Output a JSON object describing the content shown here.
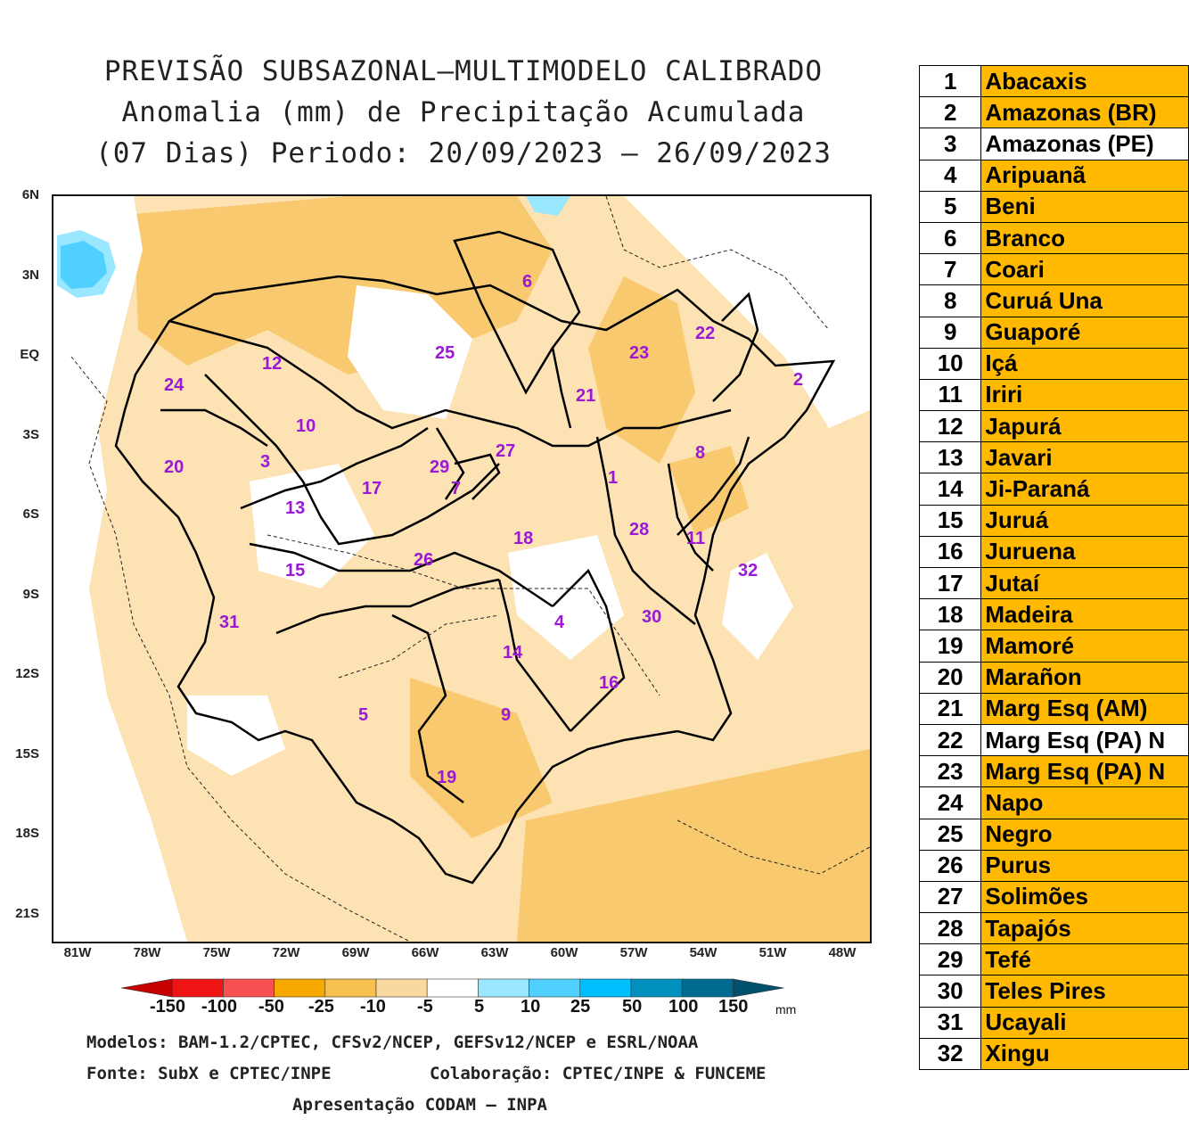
{
  "title": {
    "line1": "PREVISÃO SUBSAZONAL—MULTIMODELO CALIBRADO",
    "line2": "Anomalia (mm) de Precipitação Acumulada",
    "line3": "(07 Dias) Periodo: 20/09/2023 — 26/09/2023"
  },
  "map": {
    "lat_labels": [
      "6N",
      "3N",
      "EQ",
      "3S",
      "6S",
      "9S",
      "12S",
      "15S",
      "18S",
      "21S"
    ],
    "lon_labels": [
      "81W",
      "78W",
      "75W",
      "72W",
      "69W",
      "66W",
      "63W",
      "60W",
      "57W",
      "54W",
      "51W",
      "48W"
    ],
    "basin_labels": [
      "1",
      "2",
      "3",
      "4",
      "5",
      "6",
      "7",
      "8",
      "9",
      "10",
      "11",
      "12",
      "13",
      "14",
      "15",
      "16",
      "17",
      "18",
      "19",
      "20",
      "21",
      "22",
      "23",
      "24",
      "25",
      "26",
      "27",
      "28",
      "29",
      "30",
      "31",
      "32"
    ]
  },
  "colorbar": {
    "labels": [
      "-150",
      "-100",
      "-50",
      "-25",
      "-10",
      "-5",
      "5",
      "10",
      "25",
      "50",
      "100",
      "150"
    ],
    "unit": "mm",
    "colors": [
      "#c40000",
      "#ee1414",
      "#f85050",
      "#f5a800",
      "#f8c050",
      "#fad9a0",
      "#ffffff",
      "#9ae8ff",
      "#50d0ff",
      "#00bfff",
      "#0090c0",
      "#006b90",
      "#00506e"
    ]
  },
  "credits": {
    "models": "Modelos: BAM-1.2/CPTEC, CFSv2/NCEP, GEFSv12/NCEP e ESRL/NOAA",
    "source": "Fonte: SubX e CPTEC/INPE",
    "collab": "Colaboração: CPTEC/INPE & FUNCEME",
    "presentation": "Apresentação CODAM — INPA"
  },
  "basins": [
    {
      "num": "1",
      "name": "Abacaxis",
      "color": "#ffb900"
    },
    {
      "num": "2",
      "name": "Amazonas (BR)",
      "color": "#ffb900"
    },
    {
      "num": "3",
      "name": "Amazonas (PE)",
      "color": "#ffffff"
    },
    {
      "num": "4",
      "name": "Aripuanã",
      "color": "#ffb900"
    },
    {
      "num": "5",
      "name": "Beni",
      "color": "#ffb900"
    },
    {
      "num": "6",
      "name": "Branco",
      "color": "#ffb900"
    },
    {
      "num": "7",
      "name": "Coari",
      "color": "#ffb900"
    },
    {
      "num": "8",
      "name": "Curuá Una",
      "color": "#ffb900"
    },
    {
      "num": "9",
      "name": "Guaporé",
      "color": "#ffb900"
    },
    {
      "num": "10",
      "name": "Içá",
      "color": "#ffb900"
    },
    {
      "num": "11",
      "name": "Iriri",
      "color": "#ffb900"
    },
    {
      "num": "12",
      "name": "Japurá",
      "color": "#ffb900"
    },
    {
      "num": "13",
      "name": "Javari",
      "color": "#ffb900"
    },
    {
      "num": "14",
      "name": "Ji-Paraná",
      "color": "#ffb900"
    },
    {
      "num": "15",
      "name": "Juruá",
      "color": "#ffb900"
    },
    {
      "num": "16",
      "name": "Juruena",
      "color": "#ffb900"
    },
    {
      "num": "17",
      "name": "Jutaí",
      "color": "#ffb900"
    },
    {
      "num": "18",
      "name": "Madeira",
      "color": "#ffb900"
    },
    {
      "num": "19",
      "name": "Mamoré",
      "color": "#ffb900"
    },
    {
      "num": "20",
      "name": "Marañon",
      "color": "#ffb900"
    },
    {
      "num": "21",
      "name": "Marg Esq (AM)",
      "color": "#ffb900"
    },
    {
      "num": "22",
      "name": "Marg Esq (PA) N",
      "color": "#ffffff"
    },
    {
      "num": "23",
      "name": "Marg Esq (PA) N",
      "color": "#ffb900"
    },
    {
      "num": "24",
      "name": "Napo",
      "color": "#ffb900"
    },
    {
      "num": "25",
      "name": "Negro",
      "color": "#ffb900"
    },
    {
      "num": "26",
      "name": "Purus",
      "color": "#ffb900"
    },
    {
      "num": "27",
      "name": "Solimões",
      "color": "#ffb900"
    },
    {
      "num": "28",
      "name": "Tapajós",
      "color": "#ffb900"
    },
    {
      "num": "29",
      "name": "Tefé",
      "color": "#ffb900"
    },
    {
      "num": "30",
      "name": "Teles Pires",
      "color": "#ffb900"
    },
    {
      "num": "31",
      "name": "Ucayali",
      "color": "#ffb900"
    },
    {
      "num": "32",
      "name": "Xingu",
      "color": "#ffb900"
    }
  ]
}
